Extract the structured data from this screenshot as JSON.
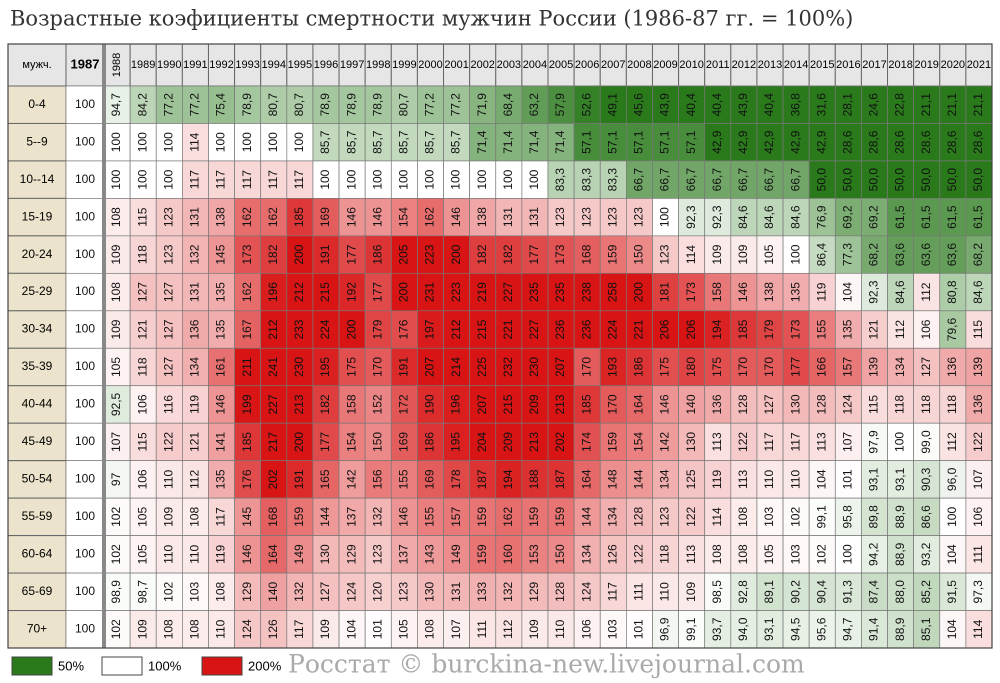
{
  "title": "Возрастные коэфициенты смертности мужчин России (1986-87 гг. = 100%)",
  "table": {
    "corner": "мужч.",
    "columns": [
      "1987",
      "1988",
      "1989",
      "1990",
      "1991",
      "1992",
      "1993",
      "1994",
      "1995",
      "1996",
      "1997",
      "1998",
      "1999",
      "2000",
      "2001",
      "2002",
      "2003",
      "2004",
      "2005",
      "2006",
      "2007",
      "2008",
      "2009",
      "2010",
      "2011",
      "2012",
      "2013",
      "2014",
      "2015",
      "2016",
      "2017",
      "2018",
      "2019",
      "2020",
      "2021"
    ],
    "rows": [
      {
        "label": "0-4",
        "values": [
          "100",
          "94,7",
          "84,2",
          "77,2",
          "77,2",
          "75,4",
          "78,9",
          "80,7",
          "80,7",
          "78,9",
          "78,9",
          "78,9",
          "80,7",
          "77,2",
          "77,2",
          "71,9",
          "68,4",
          "63,2",
          "57,9",
          "52,6",
          "49,1",
          "45,6",
          "43,9",
          "40,4",
          "40,4",
          "43,9",
          "40,4",
          "36,8",
          "31,6",
          "28,1",
          "24,6",
          "22,8",
          "21,1",
          "21,1",
          "21,1"
        ]
      },
      {
        "label": "5--9",
        "values": [
          "100",
          "100",
          "100",
          "100",
          "114",
          "100",
          "100",
          "100",
          "100",
          "85,7",
          "85,7",
          "85,7",
          "85,7",
          "85,7",
          "85,7",
          "71,4",
          "71,4",
          "71,4",
          "71,4",
          "57,1",
          "57,1",
          "57,1",
          "57,1",
          "57,1",
          "42,9",
          "42,9",
          "42,9",
          "42,9",
          "42,9",
          "28,6",
          "28,6",
          "28,6",
          "28,6",
          "28,6",
          "28,6"
        ]
      },
      {
        "label": "10--14",
        "values": [
          "100",
          "100",
          "100",
          "100",
          "117",
          "117",
          "117",
          "117",
          "117",
          "100",
          "100",
          "100",
          "100",
          "100",
          "100",
          "100",
          "100",
          "100",
          "83,3",
          "83,3",
          "83,3",
          "66,7",
          "66,7",
          "66,7",
          "66,7",
          "66,7",
          "66,7",
          "66,7",
          "50,0",
          "50,0",
          "50,0",
          "50,0",
          "50,0",
          "50,0",
          "50,0"
        ]
      },
      {
        "label": "15-19",
        "values": [
          "100",
          "108",
          "115",
          "123",
          "131",
          "138",
          "162",
          "162",
          "185",
          "169",
          "146",
          "146",
          "154",
          "162",
          "146",
          "138",
          "131",
          "131",
          "123",
          "123",
          "123",
          "123",
          "100",
          "92,3",
          "92,3",
          "84,6",
          "84,6",
          "84,6",
          "76,9",
          "69,2",
          "69,2",
          "61,5",
          "61,5",
          "61,5",
          "61,5"
        ]
      },
      {
        "label": "20-24",
        "values": [
          "100",
          "109",
          "118",
          "123",
          "132",
          "145",
          "173",
          "182",
          "200",
          "191",
          "177",
          "186",
          "205",
          "223",
          "200",
          "182",
          "182",
          "177",
          "173",
          "168",
          "159",
          "150",
          "123",
          "114",
          "109",
          "109",
          "105",
          "100",
          "86,4",
          "77,3",
          "68,2",
          "63,6",
          "63,6",
          "63,6",
          "68,2"
        ]
      },
      {
        "label": "25-29",
        "values": [
          "100",
          "108",
          "127",
          "127",
          "131",
          "135",
          "162",
          "196",
          "212",
          "215",
          "192",
          "177",
          "200",
          "231",
          "223",
          "219",
          "227",
          "235",
          "235",
          "238",
          "258",
          "200",
          "181",
          "173",
          "158",
          "146",
          "138",
          "135",
          "119",
          "104",
          "92,3",
          "84,6",
          "112",
          "80,8",
          "84,6"
        ]
      },
      {
        "label": "30-34",
        "values": [
          "100",
          "109",
          "121",
          "127",
          "136",
          "135",
          "167",
          "212",
          "233",
          "224",
          "200",
          "179",
          "176",
          "197",
          "212",
          "215",
          "221",
          "227",
          "236",
          "236",
          "224",
          "221",
          "206",
          "206",
          "194",
          "185",
          "179",
          "173",
          "155",
          "135",
          "121",
          "112",
          "106",
          "79,6",
          "115"
        ]
      },
      {
        "label": "35-39",
        "values": [
          "100",
          "105",
          "118",
          "127",
          "134",
          "161",
          "211",
          "241",
          "230",
          "195",
          "175",
          "170",
          "191",
          "207",
          "214",
          "225",
          "232",
          "230",
          "207",
          "170",
          "193",
          "186",
          "175",
          "180",
          "175",
          "170",
          "170",
          "177",
          "166",
          "157",
          "139",
          "134",
          "127",
          "136",
          "139"
        ]
      },
      {
        "label": "40-44",
        "values": [
          "100",
          "92,5",
          "106",
          "116",
          "119",
          "146",
          "199",
          "227",
          "213",
          "182",
          "158",
          "152",
          "172",
          "190",
          "196",
          "207",
          "215",
          "209",
          "213",
          "185",
          "170",
          "164",
          "146",
          "140",
          "136",
          "128",
          "127",
          "130",
          "128",
          "124",
          "115",
          "118",
          "118",
          "118",
          "136"
        ]
      },
      {
        "label": "45-49",
        "values": [
          "100",
          "107",
          "115",
          "122",
          "121",
          "141",
          "185",
          "217",
          "200",
          "177",
          "154",
          "150",
          "169",
          "186",
          "195",
          "204",
          "209",
          "213",
          "202",
          "174",
          "159",
          "154",
          "142",
          "130",
          "113",
          "122",
          "117",
          "117",
          "113",
          "107",
          "97,9",
          "100",
          "99,0",
          "112",
          "122"
        ]
      },
      {
        "label": "50-54",
        "values": [
          "100",
          "97",
          "106",
          "110",
          "112",
          "135",
          "176",
          "202",
          "191",
          "165",
          "142",
          "156",
          "155",
          "169",
          "178",
          "187",
          "194",
          "188",
          "187",
          "164",
          "148",
          "144",
          "134",
          "125",
          "119",
          "113",
          "110",
          "110",
          "104",
          "101",
          "93,1",
          "93,1",
          "90,3",
          "96,0",
          "107"
        ]
      },
      {
        "label": "55-59",
        "values": [
          "100",
          "102",
          "105",
          "109",
          "108",
          "117",
          "145",
          "168",
          "159",
          "144",
          "137",
          "132",
          "146",
          "155",
          "157",
          "159",
          "162",
          "159",
          "159",
          "144",
          "134",
          "128",
          "123",
          "122",
          "114",
          "108",
          "103",
          "102",
          "99,1",
          "95,8",
          "89,8",
          "88,9",
          "86,6",
          "100",
          "106"
        ]
      },
      {
        "label": "60-64",
        "values": [
          "100",
          "102",
          "105",
          "110",
          "110",
          "119",
          "146",
          "164",
          "149",
          "130",
          "129",
          "123",
          "137",
          "143",
          "149",
          "159",
          "160",
          "153",
          "150",
          "134",
          "126",
          "122",
          "118",
          "113",
          "108",
          "108",
          "105",
          "103",
          "102",
          "100",
          "94,2",
          "88,9",
          "93,2",
          "104",
          "111"
        ]
      },
      {
        "label": "65-69",
        "values": [
          "100",
          "98,9",
          "98,7",
          "102",
          "103",
          "108",
          "129",
          "140",
          "132",
          "127",
          "124",
          "120",
          "123",
          "130",
          "131",
          "133",
          "132",
          "129",
          "128",
          "124",
          "117",
          "111",
          "110",
          "109",
          "98,5",
          "92,8",
          "89,1",
          "90,2",
          "90,4",
          "91,3",
          "87,4",
          "88,0",
          "85,2",
          "91,5",
          "97,3"
        ]
      },
      {
        "label": "70+",
        "values": [
          "100",
          "102",
          "109",
          "108",
          "108",
          "110",
          "124",
          "126",
          "117",
          "109",
          "104",
          "101",
          "105",
          "108",
          "107",
          "111",
          "112",
          "109",
          "110",
          "106",
          "103",
          "101",
          "96,9",
          "99,1",
          "93,7",
          "94,0",
          "93,1",
          "94,5",
          "95,6",
          "94,7",
          "91,4",
          "88,9",
          "85,1",
          "104",
          "114"
        ]
      }
    ]
  },
  "legend": [
    {
      "value": 50,
      "label": "50%",
      "color": "#2a7a1c"
    },
    {
      "value": 100,
      "label": "100%",
      "color": "#ffffff"
    },
    {
      "value": 200,
      "label": "200%",
      "color": "#d81414"
    }
  ],
  "source": "Росстат © burckina-new.livejournal.com"
}
